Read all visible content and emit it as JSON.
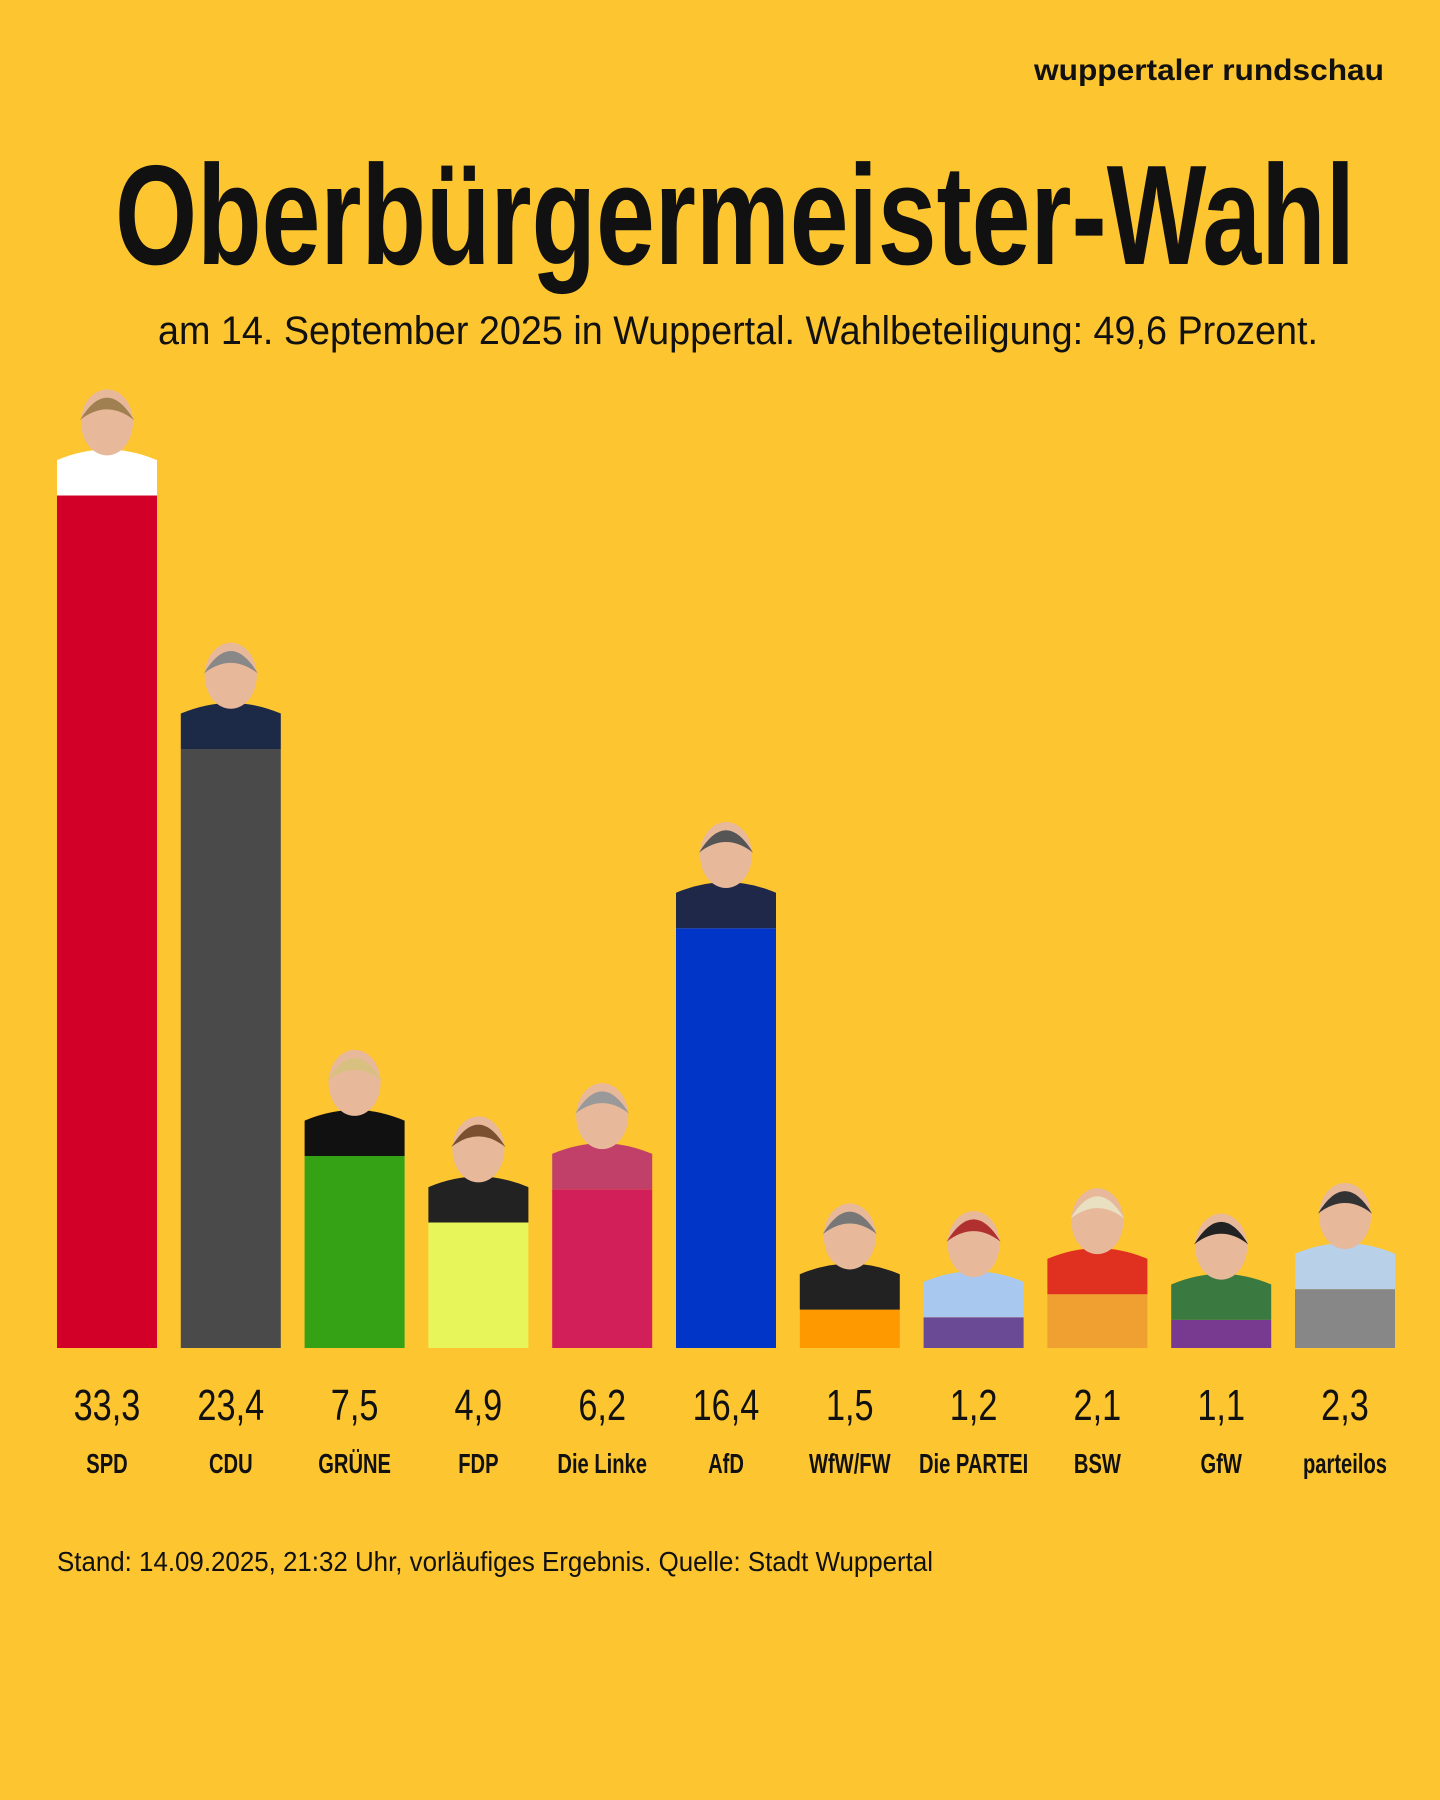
{
  "brand": "wuppertaler rundschau",
  "title": "Oberbürgermeister-Wahl",
  "subtitle": "am 14. September 2025 in Wuppertal. Wahlbeteiligung: 49,6 Prozent.",
  "footer": "Stand: 14.09.2025, 21:32 Uhr, vorläufiges Ergebnis. Quelle: Stadt Wuppertal",
  "background_color": "#fdc530",
  "chart_data": {
    "type": "bar",
    "unit": "percent",
    "categories": [
      "SPD",
      "CDU",
      "GRÜNE",
      "FDP",
      "Die Linke",
      "AfD",
      "WfW/FW",
      "Die PARTEI",
      "BSW",
      "GfW",
      "parteilos"
    ],
    "values": [
      33.3,
      23.4,
      7.5,
      4.9,
      6.2,
      16.4,
      1.5,
      1.2,
      2.1,
      1.1,
      2.3
    ],
    "value_labels": [
      "33,3",
      "23,4",
      "7,5",
      "4,9",
      "6,2",
      "16,4",
      "1,5",
      "1,2",
      "2,1",
      "1,1",
      "2,3"
    ],
    "colors": [
      "#d20028",
      "#4a4a4a",
      "#35a115",
      "#e8f55a",
      "#d21f5a",
      "#0035c8",
      "#ff9900",
      "#6a4a94",
      "#f0a030",
      "#773a90",
      "#878787"
    ],
    "candidate_photos": true,
    "grid": false,
    "axes": false
  }
}
